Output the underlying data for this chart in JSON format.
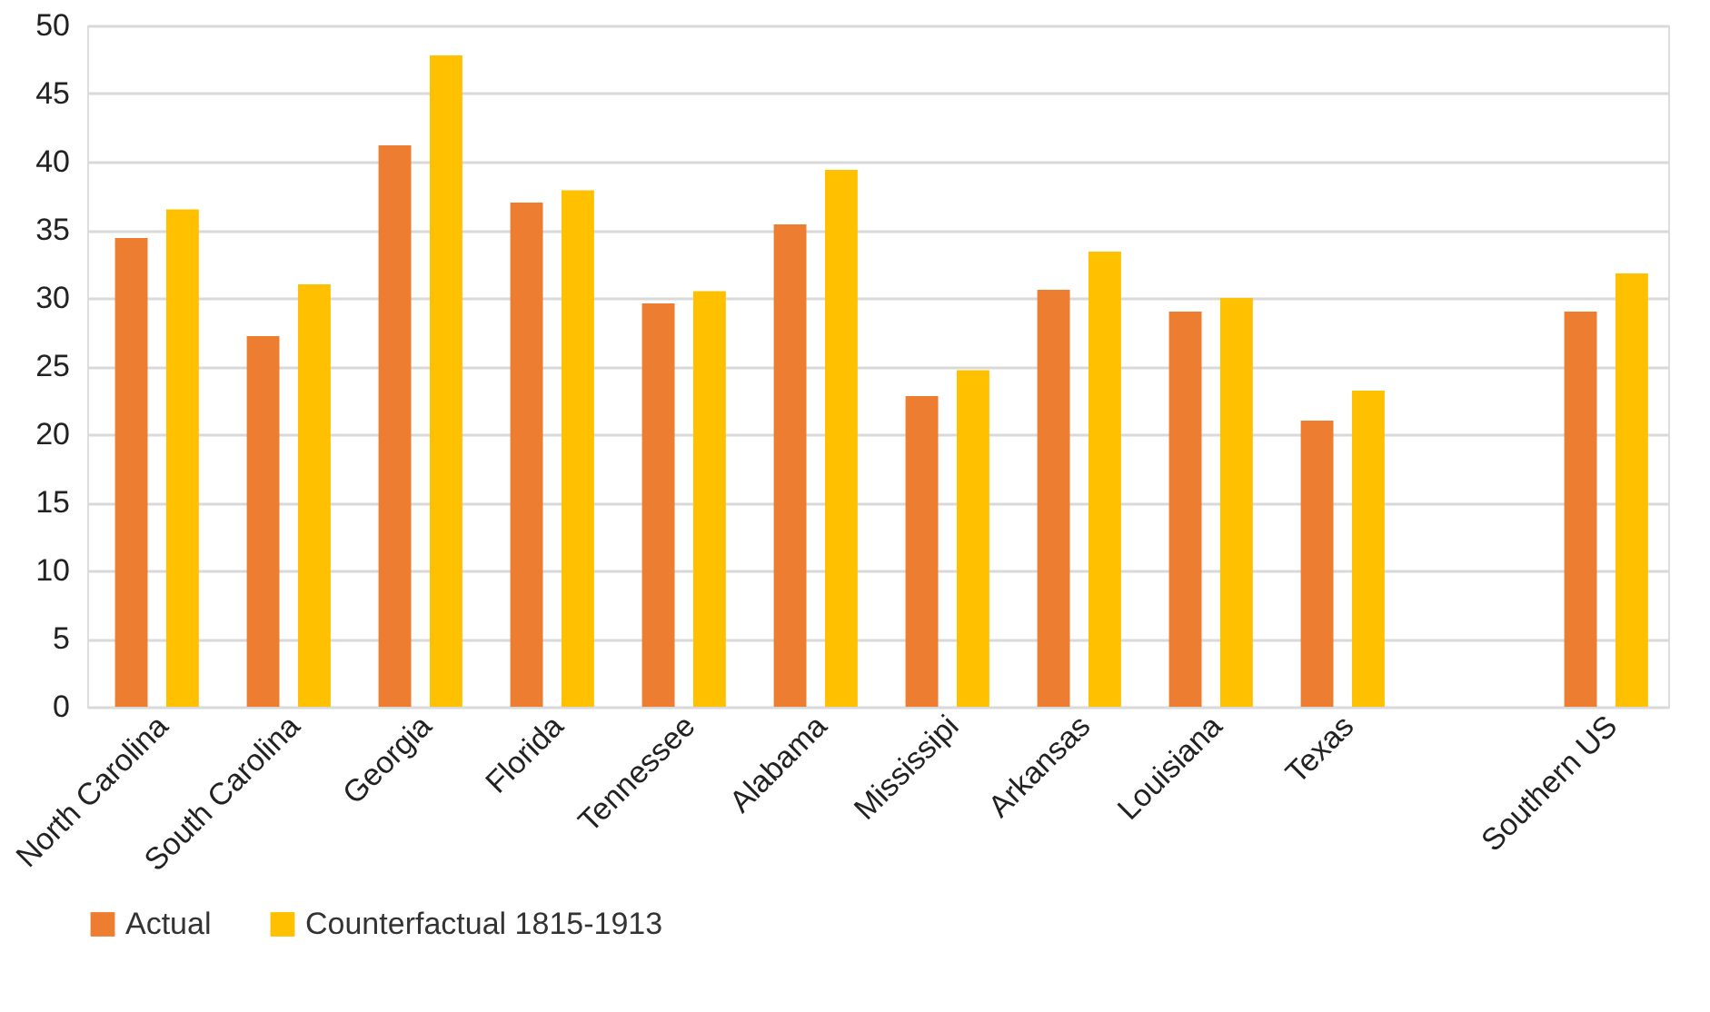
{
  "chart_data": {
    "type": "bar",
    "categories": [
      "North Carolina",
      "South Carolina",
      "Georgia",
      "Florida",
      "Tennessee",
      "Alabama",
      "Mississipi",
      "Arkansas",
      "Louisiana",
      "Texas",
      null,
      "Southern US"
    ],
    "series": [
      {
        "name": "Actual",
        "color": "#ed7d31",
        "values": [
          34.4,
          27.2,
          41.2,
          37.0,
          29.6,
          35.4,
          22.8,
          30.6,
          29.0,
          21.0,
          null,
          29.0
        ]
      },
      {
        "name": "Counterfactual 1815-1913",
        "color": "#ffc000",
        "values": [
          36.5,
          31.0,
          47.8,
          37.9,
          30.5,
          39.4,
          24.7,
          33.4,
          30.0,
          23.2,
          null,
          31.8
        ]
      }
    ],
    "ylim": [
      0,
      50
    ],
    "yticks": [
      0,
      5,
      10,
      15,
      20,
      25,
      30,
      35,
      40,
      45,
      50
    ],
    "grid": "y",
    "legend": "bottom"
  }
}
